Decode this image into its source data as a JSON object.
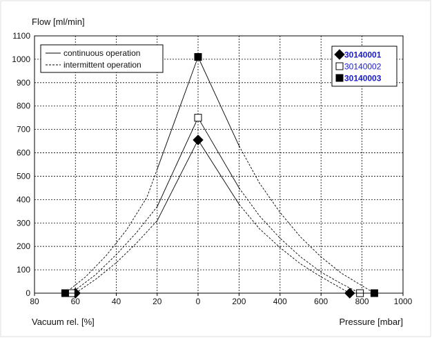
{
  "chart_data": {
    "type": "line",
    "ylabel": "Flow [ml/min]",
    "xlabel_left": "Vacuum rel. [%]",
    "xlabel_right": "Pressure [mbar]",
    "y_ticks": [
      "0",
      "100",
      "200",
      "300",
      "400",
      "500",
      "600",
      "700",
      "800",
      "900",
      "1000",
      "1100"
    ],
    "x_ticks": [
      "80",
      "60",
      "40",
      "20",
      "0",
      "200",
      "400",
      "600",
      "800",
      "1000"
    ],
    "ylim": [
      0,
      1100
    ],
    "x_axis_note": "left half: vacuum 80%..0%, right half: pressure 0..1000 mbar",
    "grid": "dashed",
    "legend_line_styles": {
      "continuous": "continuous operation",
      "intermittent": "intermittent operation",
      "placement": "top-left"
    },
    "legend_series_placement": "top-right",
    "series": [
      {
        "name": "30140001",
        "marker": "diamond",
        "color": "#1a1acc",
        "vacuum_endpoint": {
          "vacuum_pct": 60,
          "flow": 0
        },
        "pressure_endpoint": {
          "pressure_mbar": 740,
          "flow": 0
        },
        "peak_flow": 655,
        "continuous_left": [
          {
            "vacuum_pct": 20,
            "flow": 310
          },
          {
            "vacuum_pct": 0,
            "flow": 655
          }
        ],
        "continuous_right": [
          {
            "pressure_mbar": 0,
            "flow": 655
          },
          {
            "pressure_mbar": 200,
            "flow": 380
          }
        ],
        "intermittent_left": [
          {
            "vacuum_pct": 60,
            "flow": 0
          },
          {
            "vacuum_pct": 50,
            "flow": 60
          },
          {
            "vacuum_pct": 40,
            "flow": 130
          },
          {
            "vacuum_pct": 30,
            "flow": 215
          },
          {
            "vacuum_pct": 20,
            "flow": 310
          }
        ],
        "intermittent_right": [
          {
            "pressure_mbar": 200,
            "flow": 380
          },
          {
            "pressure_mbar": 300,
            "flow": 275
          },
          {
            "pressure_mbar": 400,
            "flow": 195
          },
          {
            "pressure_mbar": 500,
            "flow": 125
          },
          {
            "pressure_mbar": 600,
            "flow": 70
          },
          {
            "pressure_mbar": 740,
            "flow": 0
          }
        ]
      },
      {
        "name": "30140002",
        "marker": "open-square",
        "color": "#1a1acc",
        "vacuum_endpoint": {
          "vacuum_pct": 62,
          "flow": 0
        },
        "pressure_endpoint": {
          "pressure_mbar": 790,
          "flow": 0
        },
        "peak_flow": 750,
        "continuous_left": [
          {
            "vacuum_pct": 20,
            "flow": 370
          },
          {
            "vacuum_pct": 0,
            "flow": 750
          }
        ],
        "continuous_right": [
          {
            "pressure_mbar": 0,
            "flow": 750
          },
          {
            "pressure_mbar": 200,
            "flow": 450
          }
        ],
        "intermittent_left": [
          {
            "vacuum_pct": 62,
            "flow": 0
          },
          {
            "vacuum_pct": 50,
            "flow": 80
          },
          {
            "vacuum_pct": 40,
            "flow": 165
          },
          {
            "vacuum_pct": 30,
            "flow": 260
          },
          {
            "vacuum_pct": 20,
            "flow": 370
          }
        ],
        "intermittent_right": [
          {
            "pressure_mbar": 200,
            "flow": 450
          },
          {
            "pressure_mbar": 300,
            "flow": 330
          },
          {
            "pressure_mbar": 400,
            "flow": 235
          },
          {
            "pressure_mbar": 500,
            "flow": 155
          },
          {
            "pressure_mbar": 600,
            "flow": 90
          },
          {
            "pressure_mbar": 700,
            "flow": 40
          },
          {
            "pressure_mbar": 790,
            "flow": 0
          }
        ]
      },
      {
        "name": "30140003",
        "marker": "filled-square",
        "color": "#1a1acc",
        "vacuum_endpoint": {
          "vacuum_pct": 65,
          "flow": 0
        },
        "pressure_endpoint": {
          "pressure_mbar": 860,
          "flow": 0
        },
        "peak_flow": 1010,
        "continuous_left": [
          {
            "vacuum_pct": 20,
            "flow": 530
          },
          {
            "vacuum_pct": 0,
            "flow": 1010
          }
        ],
        "continuous_right": [
          {
            "pressure_mbar": 0,
            "flow": 1010
          },
          {
            "pressure_mbar": 200,
            "flow": 630
          }
        ],
        "intermittent_left": [
          {
            "vacuum_pct": 65,
            "flow": 0
          },
          {
            "vacuum_pct": 55,
            "flow": 70
          },
          {
            "vacuum_pct": 45,
            "flow": 160
          },
          {
            "vacuum_pct": 35,
            "flow": 270
          },
          {
            "vacuum_pct": 25,
            "flow": 410
          },
          {
            "vacuum_pct": 20,
            "flow": 530
          }
        ],
        "intermittent_right": [
          {
            "pressure_mbar": 200,
            "flow": 630
          },
          {
            "pressure_mbar": 300,
            "flow": 470
          },
          {
            "pressure_mbar": 400,
            "flow": 345
          },
          {
            "pressure_mbar": 500,
            "flow": 240
          },
          {
            "pressure_mbar": 600,
            "flow": 155
          },
          {
            "pressure_mbar": 700,
            "flow": 85
          },
          {
            "pressure_mbar": 860,
            "flow": 0
          }
        ]
      }
    ]
  }
}
